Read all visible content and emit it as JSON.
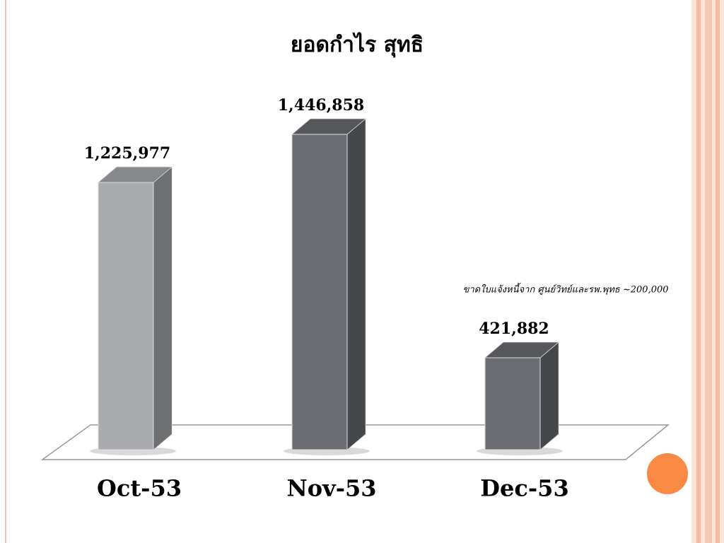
{
  "chart_data": {
    "type": "bar3d",
    "title": "ยอดกำไร สุทธิ",
    "categories": [
      "Oct-53",
      "Nov-53",
      "Dec-53"
    ],
    "values": [
      1225977,
      1446858,
      421882
    ],
    "value_labels": [
      "1,225,977",
      "1,446,858",
      "421,882"
    ],
    "colors": [
      "#a9abae",
      "#6b6d72",
      "#6b6d72"
    ],
    "annotation": "ขาดใบแจ้งหนี้จาก ศูนย์วิทย์และรพ.พุทธ ~200,000"
  }
}
